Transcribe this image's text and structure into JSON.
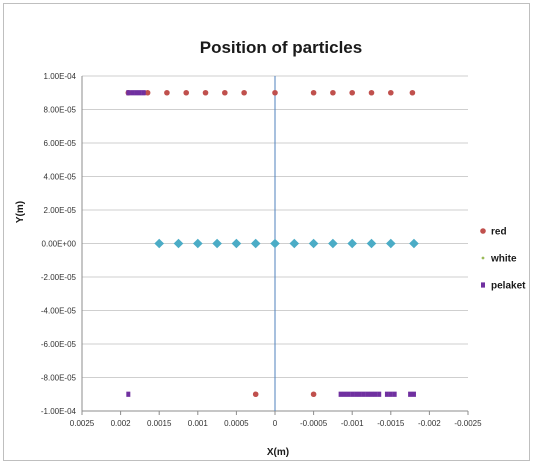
{
  "chart_data": {
    "type": "scatter",
    "title": "Position of particles",
    "xlabel": "X(m)",
    "ylabel": "Y(m)",
    "xlim": [
      0.0025,
      -0.0025
    ],
    "ylim": [
      -0.0001,
      0.0001
    ],
    "x_reversed": true,
    "grid": "horizontal",
    "legend_position": "right",
    "x_tick_labels": [
      "0.0025",
      "0.002",
      "0.0015",
      "0.001",
      "0.0005",
      "0",
      "-0.0005",
      "-0.001",
      "-0.0015",
      "-0.002",
      "-0.0025"
    ],
    "x_tick_values": [
      0.0025,
      0.002,
      0.0015,
      0.001,
      0.0005,
      0,
      -0.0005,
      -0.001,
      -0.0015,
      -0.002,
      -0.0025
    ],
    "y_tick_labels": [
      "1.00E-04",
      "8.00E-05",
      "6.00E-05",
      "4.00E-05",
      "2.00E-05",
      "0.00E+00",
      "-2.00E-05",
      "-4.00E-05",
      "-6.00E-05",
      "-8.00E-05",
      "-1.00E-04"
    ],
    "y_tick_values": [
      0.0001,
      8e-05,
      6e-05,
      4e-05,
      2e-05,
      0,
      -2e-05,
      -4e-05,
      -6e-05,
      -8e-05,
      -0.0001
    ],
    "series": [
      {
        "name": "red",
        "color": "#c0504d",
        "marker": "circle",
        "points": [
          [
            0.0019,
            9e-05
          ],
          [
            0.00165,
            9e-05
          ],
          [
            0.0014,
            9e-05
          ],
          [
            0.00115,
            9e-05
          ],
          [
            0.0009,
            9e-05
          ],
          [
            0.00065,
            9e-05
          ],
          [
            0.0004,
            9e-05
          ],
          [
            0.0,
            9e-05
          ],
          [
            -0.0005,
            9e-05
          ],
          [
            -0.00075,
            9e-05
          ],
          [
            -0.001,
            9e-05
          ],
          [
            -0.00125,
            9e-05
          ],
          [
            -0.0015,
            9e-05
          ],
          [
            -0.00178,
            9e-05
          ],
          [
            0.00025,
            -9e-05
          ],
          [
            -0.0005,
            -9e-05
          ]
        ]
      },
      {
        "name": "white",
        "color": "#9bbb59",
        "marker": "dot",
        "points": []
      },
      {
        "name": "pelaket",
        "color": "#7030a0",
        "marker": "square",
        "points": [
          [
            0.0019,
            9e-05
          ],
          [
            0.00185,
            9e-05
          ],
          [
            0.0018,
            9e-05
          ],
          [
            0.00175,
            9e-05
          ],
          [
            0.0017,
            9e-05
          ],
          [
            0.0019,
            -9e-05
          ],
          [
            -0.00085,
            -9e-05
          ],
          [
            -0.0009,
            -9e-05
          ],
          [
            -0.00095,
            -9e-05
          ],
          [
            -0.001,
            -9e-05
          ],
          [
            -0.00105,
            -9e-05
          ],
          [
            -0.0011,
            -9e-05
          ],
          [
            -0.00115,
            -9e-05
          ],
          [
            -0.0012,
            -9e-05
          ],
          [
            -0.00125,
            -9e-05
          ],
          [
            -0.0013,
            -9e-05
          ],
          [
            -0.00135,
            -9e-05
          ],
          [
            -0.00145,
            -9e-05
          ],
          [
            -0.0015,
            -9e-05
          ],
          [
            -0.00155,
            -9e-05
          ],
          [
            -0.00175,
            -9e-05
          ],
          [
            -0.0018,
            -9e-05
          ]
        ]
      },
      {
        "name": "",
        "color": "#4bacc6",
        "marker": "diamond",
        "points": [
          [
            0.0015,
            0
          ],
          [
            0.00125,
            0
          ],
          [
            0.001,
            0
          ],
          [
            0.00075,
            0
          ],
          [
            0.0005,
            0
          ],
          [
            0.00025,
            0
          ],
          [
            0.0,
            0
          ],
          [
            -0.00025,
            0
          ],
          [
            -0.0005,
            0
          ],
          [
            -0.00075,
            0
          ],
          [
            -0.001,
            0
          ],
          [
            -0.00125,
            0
          ],
          [
            -0.0015,
            0
          ],
          [
            -0.0018,
            0
          ]
        ]
      }
    ]
  }
}
